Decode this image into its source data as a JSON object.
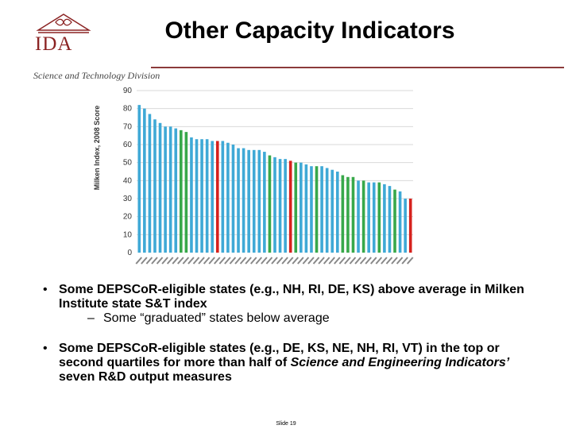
{
  "header": {
    "title": "Other Capacity Indicators",
    "logo_text": "IDA",
    "division": "Science and Technology Division"
  },
  "colors": {
    "blue": "#3fa9d6",
    "green": "#38a84a",
    "red": "#d6221d",
    "grid": "#d9d9d9",
    "brand": "#8b2323"
  },
  "chart_data": {
    "type": "bar",
    "ylabel": "Milken Index, 2008 Score",
    "ylim": [
      0,
      90
    ],
    "yticks": [
      0,
      10,
      20,
      30,
      40,
      50,
      60,
      70,
      80,
      90
    ],
    "grid": true,
    "values": [
      82,
      80,
      77,
      74,
      72,
      70,
      70,
      69,
      68,
      67,
      64,
      63,
      63,
      63,
      62,
      62,
      62,
      61,
      60,
      58,
      58,
      57,
      57,
      57,
      56,
      54,
      53,
      52,
      52,
      51,
      50,
      50,
      49,
      48,
      48,
      48,
      47,
      46,
      45,
      43,
      42,
      42,
      40,
      40,
      39,
      39,
      39,
      38,
      37,
      35,
      34,
      30,
      30
    ],
    "colors": [
      "blue",
      "blue",
      "blue",
      "blue",
      "blue",
      "blue",
      "blue",
      "blue",
      "green",
      "green",
      "blue",
      "blue",
      "blue",
      "blue",
      "blue",
      "red",
      "blue",
      "blue",
      "blue",
      "blue",
      "blue",
      "blue",
      "blue",
      "blue",
      "blue",
      "green",
      "blue",
      "blue",
      "blue",
      "red",
      "green",
      "blue",
      "blue",
      "blue",
      "green",
      "blue",
      "blue",
      "blue",
      "blue",
      "green",
      "green",
      "green",
      "blue",
      "green",
      "blue",
      "blue",
      "green",
      "blue",
      "blue",
      "green",
      "blue",
      "blue",
      "red"
    ]
  },
  "bullets": [
    {
      "text": "Some DEPSCoR-eligible states (e.g., NH, RI, DE, KS) above average in Milken Institute state S&T index",
      "sub": "Some “graduated” states below average"
    },
    {
      "text_before": "Some DEPSCoR-eligible states (e.g., DE, KS, NE, NH, RI, VT) in the top or second quartiles for more than half of ",
      "italic": "Science and Engineering Indicators’",
      "text_after": " seven R&D output measures"
    }
  ],
  "footer": {
    "slide_number": "Slide 19"
  }
}
